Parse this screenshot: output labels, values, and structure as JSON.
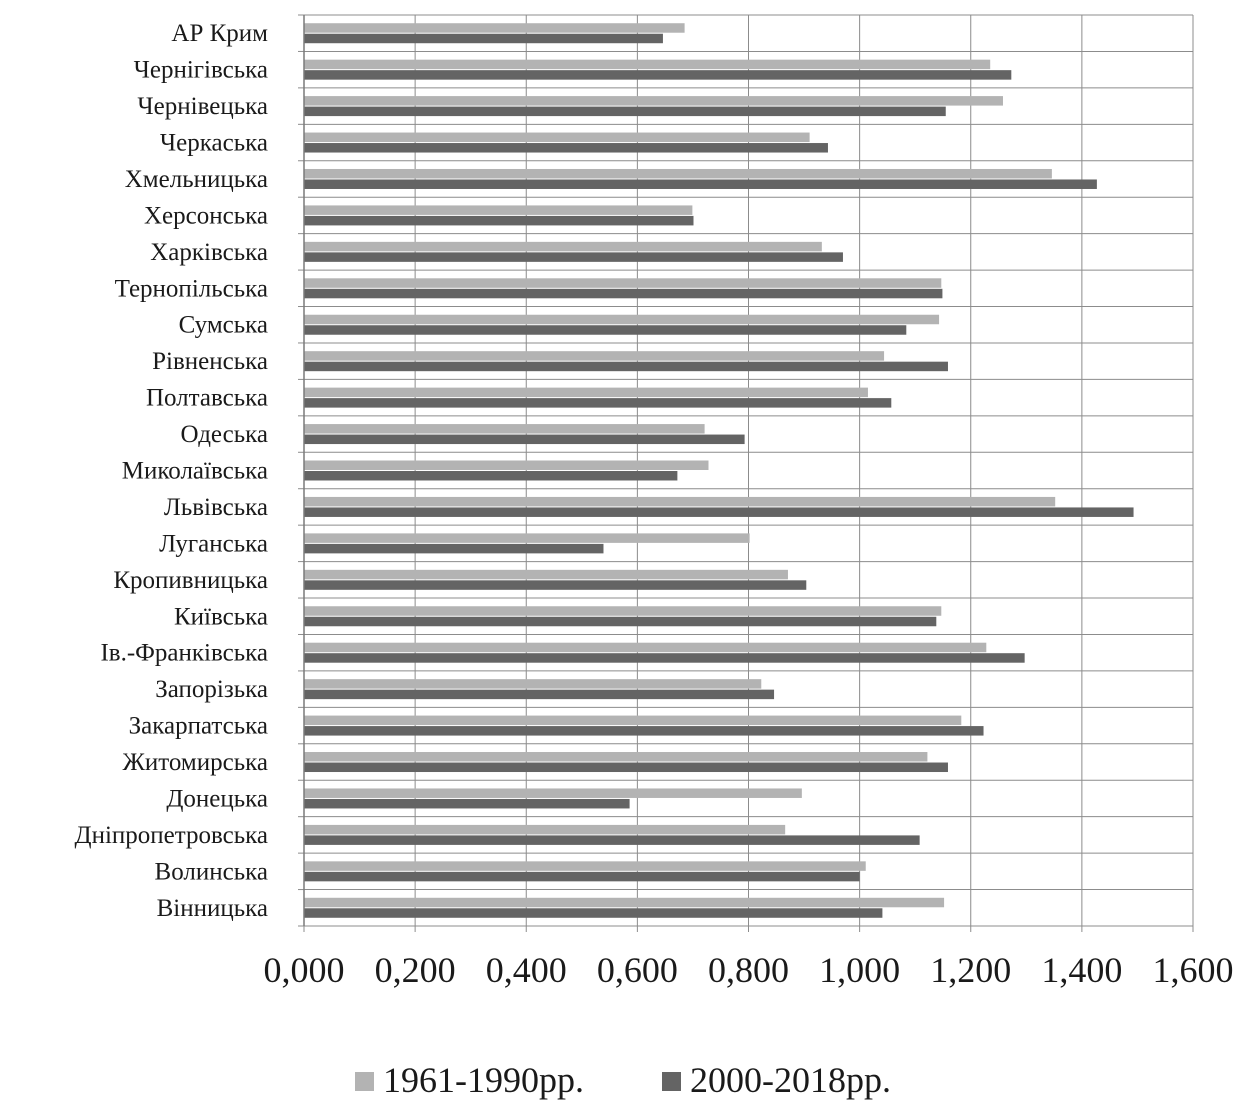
{
  "chart_data": {
    "type": "bar",
    "orientation": "horizontal",
    "title": "",
    "xlabel": "",
    "ylabel": "",
    "xlim": [
      0,
      1.6
    ],
    "x_ticks": [
      "0,000",
      "0,200",
      "0,400",
      "0,600",
      "0,800",
      "1,000",
      "1,200",
      "1,400",
      "1,600"
    ],
    "grid": true,
    "legend_position": "bottom",
    "categories": [
      "АР Крим",
      "Чернігівська",
      "Чернівецька",
      "Черкаська",
      "Хмельницька",
      "Херсонська",
      "Харківська",
      "Тернопільська",
      "Сумська",
      "Рівненська",
      "Полтавська",
      "Одеська",
      "Миколаївська",
      "Львівська",
      "Луганська",
      "Кропивницька",
      "Київська",
      "Ів.-Франківська",
      "Запорізька",
      "Закарпатська",
      "Житомирська",
      "Донецька",
      "Дніпропетровська",
      "Волинська",
      "Вінницька"
    ],
    "series": [
      {
        "name": "1961-1990рр.",
        "color": "#b3b3b3",
        "values": [
          0.685,
          1.235,
          1.258,
          0.91,
          1.346,
          0.699,
          0.932,
          1.147,
          1.143,
          1.044,
          1.015,
          0.721,
          0.728,
          1.352,
          0.802,
          0.871,
          1.147,
          1.228,
          0.823,
          1.183,
          1.122,
          0.896,
          0.866,
          1.011,
          1.152
        ]
      },
      {
        "name": "2000-2018рр.",
        "color": "#646464",
        "values": [
          0.646,
          1.273,
          1.155,
          0.943,
          1.427,
          0.701,
          0.97,
          1.149,
          1.084,
          1.159,
          1.057,
          0.793,
          0.672,
          1.493,
          0.539,
          0.904,
          1.138,
          1.297,
          0.846,
          1.223,
          1.159,
          0.586,
          1.108,
          1.0,
          1.041
        ]
      }
    ]
  }
}
